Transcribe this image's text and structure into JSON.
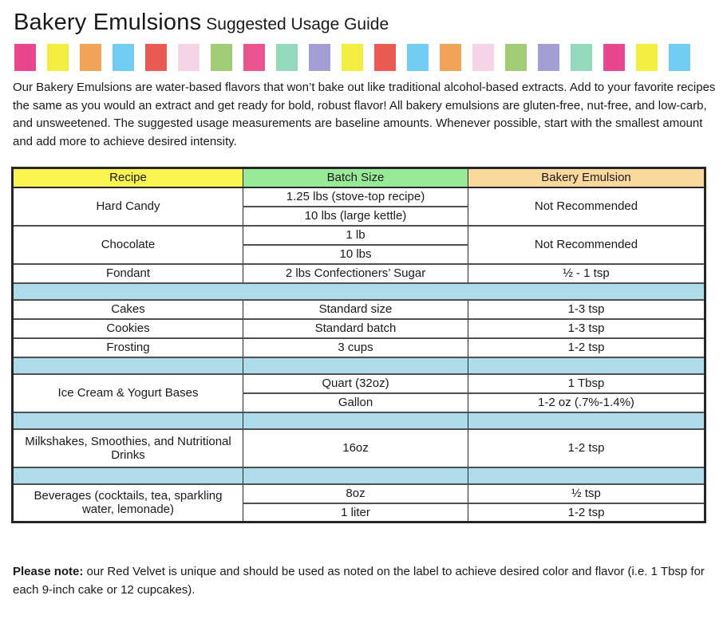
{
  "title": {
    "main": "Bakery Emulsions",
    "sub": "Suggested Usage Guide"
  },
  "palette_strip": {
    "colors": [
      "#e8478d",
      "#f2ed3f",
      "#f2a35a",
      "#72cbf2",
      "#eb5a52",
      "#f5d3e6",
      "#a2cc74",
      "#eb5290",
      "#95d9bd",
      "#a29fd4",
      "#f2ed3f",
      "#eb5a52",
      "#72cbf2",
      "#f2a35a",
      "#f5d3e6",
      "#a2cc74",
      "#a29fd4",
      "#95d9bd",
      "#e8478d",
      "#f2ed3f",
      "#72cbf2"
    ]
  },
  "intro": "Our Bakery Emulsions are water-based flavors that won’t bake out like traditional alcohol-based extracts. Add to your favorite recipes the same as you would an extract and get ready for bold, robust flavor! All bakery emulsions are gluten-free, nut-free, and low-carb, and unsweetened. The suggested usage measurements are baseline amounts. Whenever possible, start with the smallest amount and add more to achieve desired intensity.",
  "table": {
    "headers": [
      {
        "label": "Recipe",
        "color": "#faf451"
      },
      {
        "label": "Batch Size",
        "color": "#98e998"
      },
      {
        "label": "Bakery Emulsion",
        "color": "#fbd89b"
      }
    ],
    "separator_color": "#aedceb",
    "rows": {
      "hard_candy": {
        "recipe": "Hard Candy",
        "batch1": "1.25 lbs (stove-top recipe)",
        "batch2": "10 lbs (large kettle)",
        "emulsion": "Not Recommended"
      },
      "chocolate": {
        "recipe": "Chocolate",
        "batch1": "1 lb",
        "batch2": "10 lbs",
        "emulsion": "Not Recommended"
      },
      "fondant": {
        "recipe": "Fondant",
        "batch": "2 lbs Confectioners’ Sugar",
        "emulsion": "½ - 1 tsp"
      },
      "cakes": {
        "recipe": "Cakes",
        "batch": "Standard size",
        "emulsion": "1-3 tsp"
      },
      "cookies": {
        "recipe": "Cookies",
        "batch": "Standard batch",
        "emulsion": "1-3 tsp"
      },
      "frosting": {
        "recipe": "Frosting",
        "batch": "3 cups",
        "emulsion": "1-2 tsp"
      },
      "ice_cream": {
        "recipe": "Ice Cream & Yogurt Bases",
        "batch1": "Quart (32oz)",
        "emulsion1": "1 Tbsp",
        "batch2": "Gallon",
        "emulsion2": "1-2 oz (.7%-1.4%)"
      },
      "milkshakes": {
        "recipe": "Milkshakes, Smoothies, and Nutritional Drinks",
        "batch": "16oz",
        "emulsion": "1-2 tsp"
      },
      "beverages": {
        "recipe": "Beverages (cocktails, tea, sparkling water, lemonade)",
        "batch1": "8oz",
        "emulsion1": "½ tsp",
        "batch2": "1 liter",
        "emulsion2": "1-2 tsp"
      }
    }
  },
  "note": {
    "lead": "Please note:",
    "body": " our Red Velvet is unique and should be used as noted on the label to achieve desired color and flavor (i.e. 1 Tbsp for each 9-inch cake or 12 cupcakes)."
  }
}
